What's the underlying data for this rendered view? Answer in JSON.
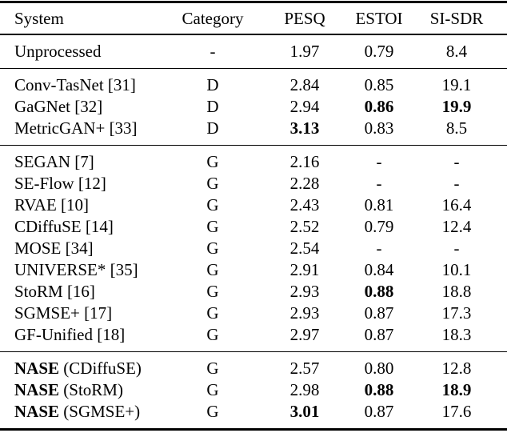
{
  "table": {
    "columns": [
      "System",
      "Category",
      "PESQ",
      "ESTOI",
      "SI-SDR"
    ],
    "blocks": [
      {
        "name": "unprocessed",
        "rows": [
          {
            "system": "Unprocessed",
            "category": "-",
            "pesq": "1.97",
            "estoi": "0.79",
            "sisdr": "8.4"
          }
        ]
      },
      {
        "name": "discriminative",
        "rows": [
          {
            "system": "Conv-TasNet [31]",
            "category": "D",
            "pesq": "2.84",
            "estoi": "0.85",
            "sisdr": "19.1"
          },
          {
            "system": "GaGNet [32]",
            "category": "D",
            "pesq": "2.94",
            "estoi": "0.86",
            "sisdr": "19.9",
            "estoi_bold": true,
            "sisdr_bold": true
          },
          {
            "system": "MetricGAN+ [33]",
            "category": "D",
            "pesq": "3.13",
            "estoi": "0.83",
            "sisdr": "8.5",
            "pesq_bold": true
          }
        ]
      },
      {
        "name": "generative",
        "rows": [
          {
            "system": "SEGAN [7]",
            "category": "G",
            "pesq": "2.16",
            "estoi": "-",
            "sisdr": "-"
          },
          {
            "system": "SE-Flow [12]",
            "category": "G",
            "pesq": "2.28",
            "estoi": "-",
            "sisdr": "-"
          },
          {
            "system": "RVAE [10]",
            "category": "G",
            "pesq": "2.43",
            "estoi": "0.81",
            "sisdr": "16.4"
          },
          {
            "system": "CDiffuSE [14]",
            "category": "G",
            "pesq": "2.52",
            "estoi": "0.79",
            "sisdr": "12.4"
          },
          {
            "system": "MOSE [34]",
            "category": "G",
            "pesq": "2.54",
            "estoi": "-",
            "sisdr": "-"
          },
          {
            "system": "UNIVERSE* [35]",
            "category": "G",
            "pesq": "2.91",
            "estoi": "0.84",
            "sisdr": "10.1"
          },
          {
            "system": "StoRM [16]",
            "category": "G",
            "pesq": "2.93",
            "estoi": "0.88",
            "sisdr": "18.8",
            "estoi_bold": true
          },
          {
            "system": "SGMSE+ [17]",
            "category": "G",
            "pesq": "2.93",
            "estoi": "0.87",
            "sisdr": "17.3"
          },
          {
            "system": "GF-Unified [18]",
            "category": "G",
            "pesq": "2.97",
            "estoi": "0.87",
            "sisdr": "18.3"
          }
        ]
      },
      {
        "name": "nase",
        "rows": [
          {
            "system_bold": "NASE",
            "system_rest": " (CDiffuSE)",
            "category": "G",
            "pesq": "2.57",
            "estoi": "0.80",
            "sisdr": "12.8"
          },
          {
            "system_bold": "NASE",
            "system_rest": " (StoRM)",
            "category": "G",
            "pesq": "2.98",
            "estoi": "0.88",
            "sisdr": "18.9",
            "estoi_bold": true,
            "sisdr_bold": true
          },
          {
            "system_bold": "NASE",
            "system_rest": " (SGMSE+)",
            "category": "G",
            "pesq": "3.01",
            "estoi": "0.87",
            "sisdr": "17.6",
            "pesq_bold": true
          }
        ]
      }
    ]
  }
}
